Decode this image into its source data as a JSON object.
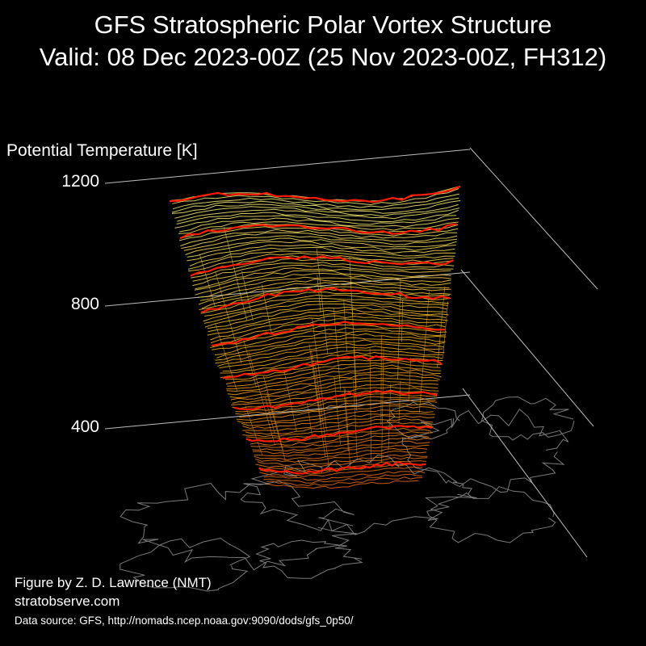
{
  "figure": {
    "title_line1": "GFS Stratospheric Polar Vortex Structure",
    "title_line2": "Valid: 08 Dec 2023-00Z  (25 Nov 2023-00Z, FH312)",
    "credit_line1": "Figure by Z. D. Lawrence (NMT)",
    "credit_line2": "stratobserve.com",
    "data_source": "Data source: GFS, http://nomads.ncep.noaa.gov:9090/dods/gfs_0p50/"
  },
  "chart_data": {
    "type": "3d-isosurface",
    "zlabel": "Potential Temperature [K]",
    "zticks": [
      {
        "value": 1200,
        "label": "1200"
      },
      {
        "value": 800,
        "label": "800"
      },
      {
        "value": 400,
        "label": "400"
      }
    ],
    "zlim": [
      350,
      1200
    ],
    "colors": {
      "background": "#000000",
      "axes": "#bdbdbd",
      "coastlines": "#7a7a7a",
      "highlight_contours": "#ff1a00",
      "vortex_low": "#e86a10",
      "vortex_mid": "#f2b21c",
      "vortex_high": "#f7f07a"
    },
    "highlight_levels": [
      1200,
      1100,
      1000,
      900,
      800,
      700,
      600,
      500,
      400
    ]
  }
}
